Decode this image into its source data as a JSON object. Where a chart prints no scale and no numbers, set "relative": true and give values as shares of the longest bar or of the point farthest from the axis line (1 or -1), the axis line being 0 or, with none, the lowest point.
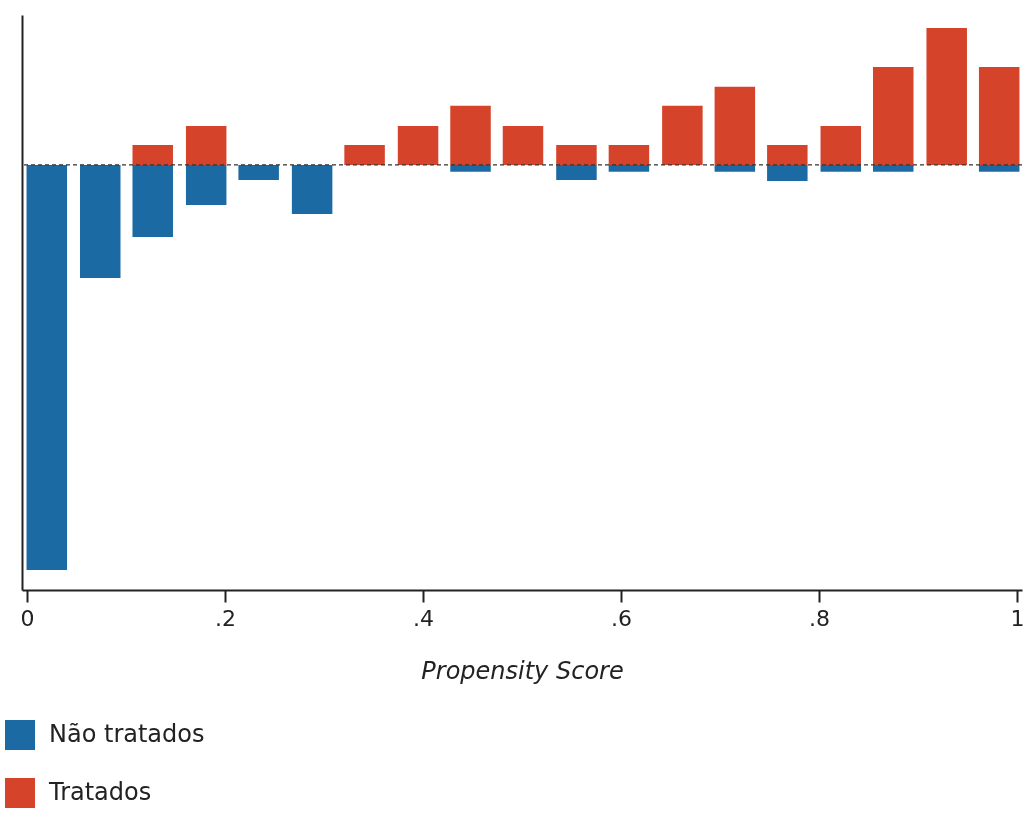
{
  "chart_data": {
    "type": "bar",
    "relative": true,
    "xlabel": "Propensity Score",
    "x": [
      0.02,
      0.074,
      0.127,
      0.181,
      0.234,
      0.288,
      0.341,
      0.395,
      0.448,
      0.501,
      0.555,
      0.608,
      0.662,
      0.715,
      0.768,
      0.822,
      0.875,
      0.929,
      0.982
    ],
    "series": [
      {
        "name": "Não tratados",
        "color": "#1c6aa3",
        "values": [
          -1,
          -0.279,
          -0.178,
          -0.099,
          -0.037,
          -0.121,
          null,
          null,
          -0.017,
          null,
          -0.037,
          -0.017,
          null,
          -0.017,
          -0.04,
          -0.017,
          -0.017,
          null,
          -0.017
        ]
      },
      {
        "name": "Tratados",
        "color": "#d5442a",
        "values": [
          null,
          null,
          0.049,
          0.096,
          null,
          null,
          0.049,
          0.096,
          0.146,
          0.096,
          0.049,
          0.049,
          0.146,
          0.193,
          0.049,
          0.096,
          0.242,
          0.338,
          0.242
        ]
      }
    ],
    "xlim": [
      0,
      1
    ],
    "xticks": [
      0,
      {
        "value": 0.2,
        "label": ".2"
      },
      {
        "value": 0.4,
        "label": ".4"
      },
      {
        "value": 0.6,
        "label": ".6"
      },
      {
        "value": 0.8,
        "label": ".8"
      },
      1
    ],
    "ref_lines": [
      {
        "axis": "y",
        "value": 0,
        "color": "#333333",
        "line_style": "dashed"
      }
    ],
    "legend": "bottom left",
    "grid": false,
    "stacked": true
  }
}
